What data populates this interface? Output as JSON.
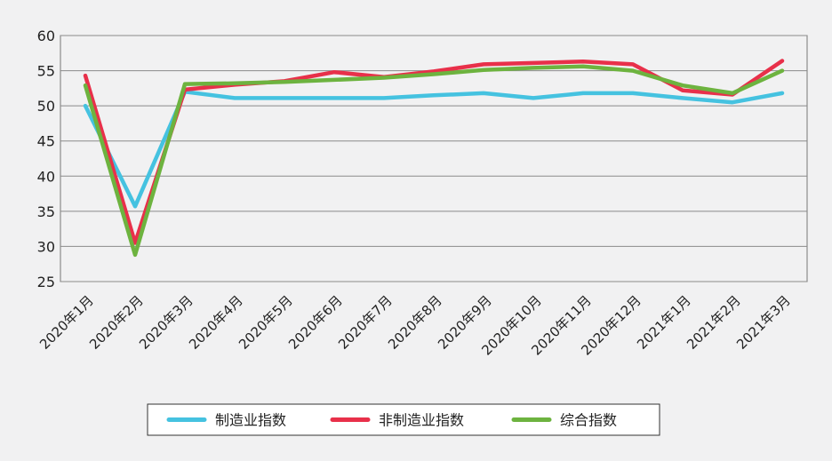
{
  "chart_data": {
    "type": "line",
    "categories": [
      "2020年1月",
      "2020年2月",
      "2020年3月",
      "2020年4月",
      "2020年5月",
      "2020年6月",
      "2020年7月",
      "2020年8月",
      "2020年9月",
      "2020年10月",
      "2020年11月",
      "2020年12月",
      "2021年1月",
      "2021年2月",
      "2021年3月"
    ],
    "ylim": [
      25,
      60
    ],
    "yticks": [
      25,
      30,
      35,
      40,
      45,
      50,
      55,
      60
    ],
    "grid": true,
    "legend_position": "bottom",
    "series": [
      {
        "name": "制造业指数",
        "color": "#45c2e0",
        "values": [
          50.0,
          35.7,
          52.0,
          51.1,
          51.1,
          51.1,
          51.1,
          51.5,
          51.8,
          51.1,
          51.8,
          51.8,
          51.1,
          50.5,
          51.8
        ]
      },
      {
        "name": "非制造业指数",
        "color": "#e8304a",
        "values": [
          54.3,
          30.5,
          52.3,
          53.0,
          53.5,
          54.8,
          54.1,
          54.9,
          55.9,
          56.1,
          56.3,
          55.9,
          52.2,
          51.6,
          56.4
        ]
      },
      {
        "name": "综合指数",
        "color": "#6db33f",
        "values": [
          52.9,
          28.8,
          53.1,
          53.2,
          53.4,
          53.7,
          54.0,
          54.5,
          55.1,
          55.4,
          55.6,
          55.0,
          52.9,
          51.8,
          55.0
        ]
      }
    ]
  }
}
